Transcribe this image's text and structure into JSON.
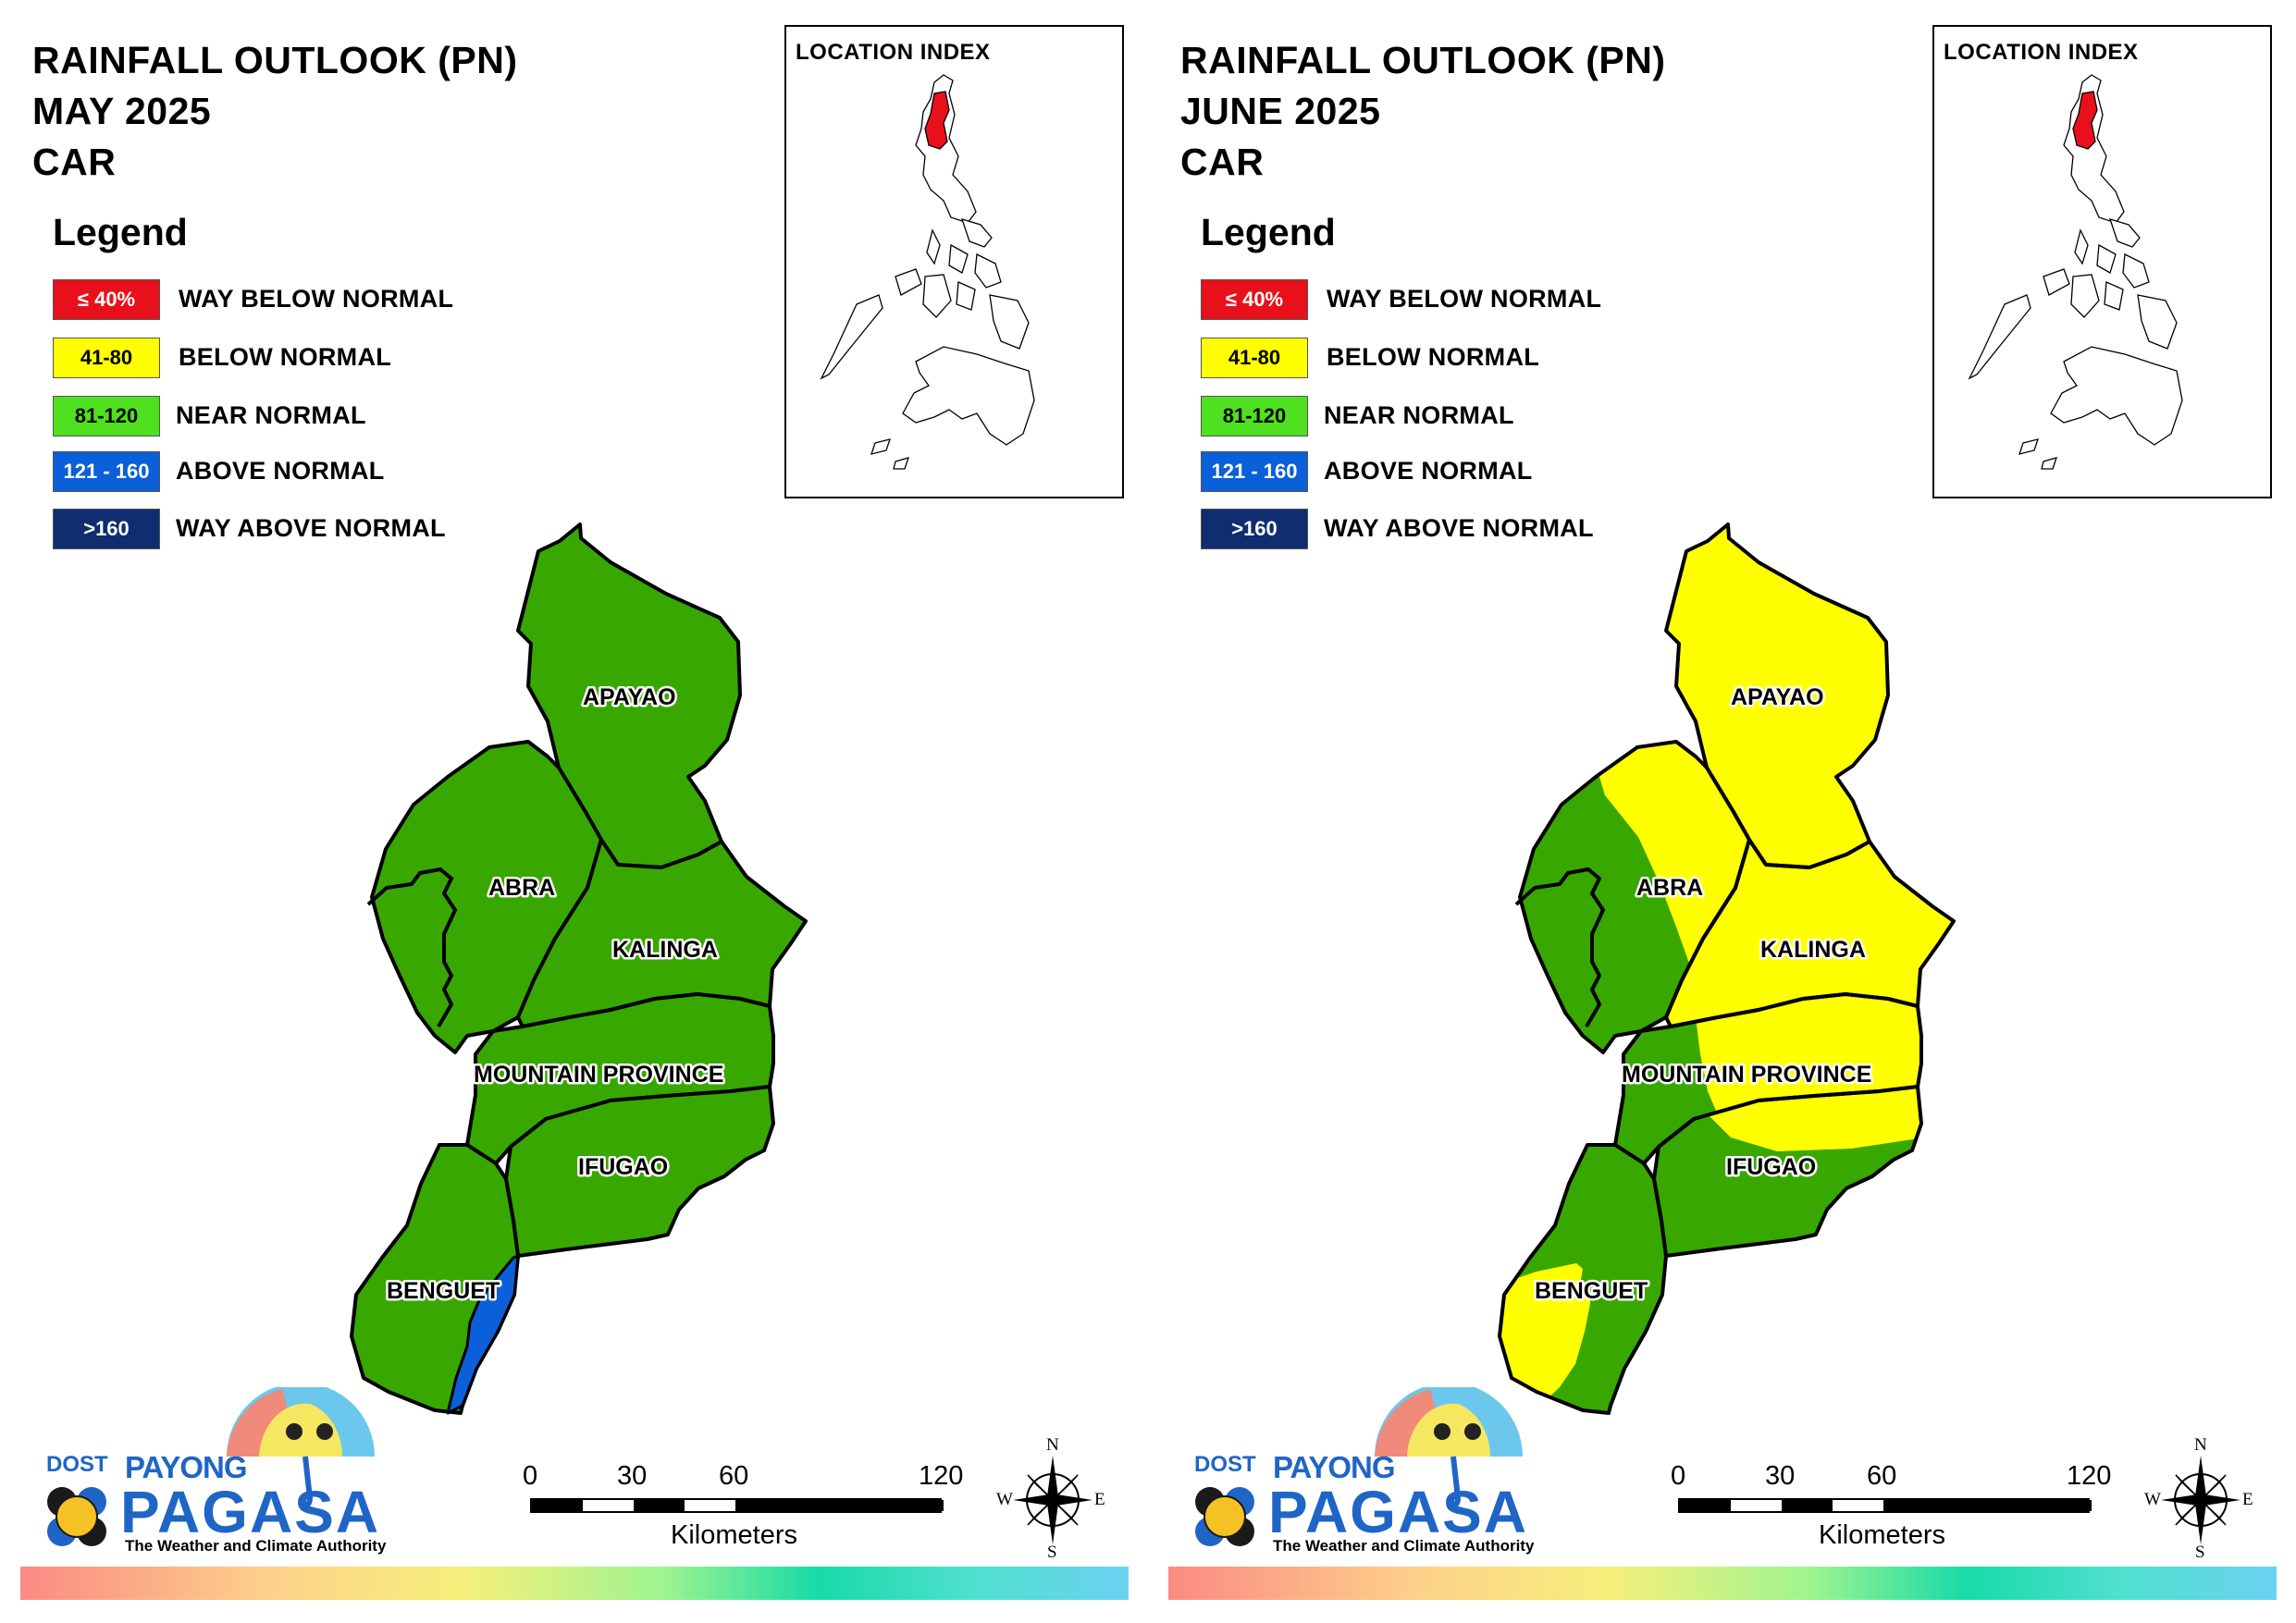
{
  "colors": {
    "way_below_normal": "#e8101a",
    "below_normal": "#ffff00",
    "near_normal": "#38a800",
    "above_normal": "#0b5fd8",
    "way_above_normal": "#0f2d6f",
    "region_highlight": "#e8101a",
    "logo_blue": "#1f65c6"
  },
  "legend": {
    "heading": "Legend",
    "items": [
      {
        "swatch": "≤ 40%",
        "label": "WAY BELOW NORMAL",
        "color": "#e8101a",
        "text_color": "#ffffff"
      },
      {
        "swatch": "41-80",
        "label": "BELOW NORMAL",
        "color": "#ffff00",
        "text_color": "#000000"
      },
      {
        "swatch": "81-120",
        "label": "NEAR NORMAL",
        "color": "#4fe01f",
        "text_color": "#000000"
      },
      {
        "swatch": "121 - 160",
        "label": "ABOVE NORMAL",
        "color": "#0b5fd8",
        "text_color": "#ffffff"
      },
      {
        "swatch": ">160",
        "label": "WAY ABOVE NORMAL",
        "color": "#0f2d6f",
        "text_color": "#ffffff"
      }
    ]
  },
  "provinces": {
    "apayao": "APAYAO",
    "abra": "ABRA",
    "kalinga": "KALINGA",
    "mountain_province": "MOUNTAIN PROVINCE",
    "ifugao": "IFUGAO",
    "benguet": "BENGUET"
  },
  "inset": {
    "title": "LOCATION INDEX"
  },
  "scale": {
    "ticks": [
      "0",
      "30",
      "60",
      "120"
    ],
    "unit": "Kilometers"
  },
  "compass": {
    "n": "N",
    "e": "E",
    "s": "S",
    "w": "W"
  },
  "logo": {
    "dost": "DOST",
    "payong": "PAYONG",
    "pagasa": "PAGASA",
    "tagline": "The Weather and Climate Authority"
  },
  "maps": [
    {
      "title_lines": [
        "RAINFALL OUTLOOK (PN)",
        "MAY 2025",
        "CAR"
      ],
      "categories": {
        "apayao": "near_normal",
        "abra": "near_normal",
        "kalinga": "near_normal",
        "mountain_province": "near_normal",
        "ifugao": "near_normal",
        "benguet": "near_normal with above_normal strip along eastern border"
      }
    },
    {
      "title_lines": [
        "RAINFALL OUTLOOK (PN)",
        "JUNE 2025",
        "CAR"
      ],
      "categories": {
        "apayao": "below_normal",
        "abra": "below_normal in east, near_normal in west",
        "kalinga": "below_normal",
        "mountain_province": "below_normal in east, near_normal in west",
        "ifugao": "near_normal",
        "benguet": "below_normal in west, near_normal in east"
      }
    }
  ]
}
